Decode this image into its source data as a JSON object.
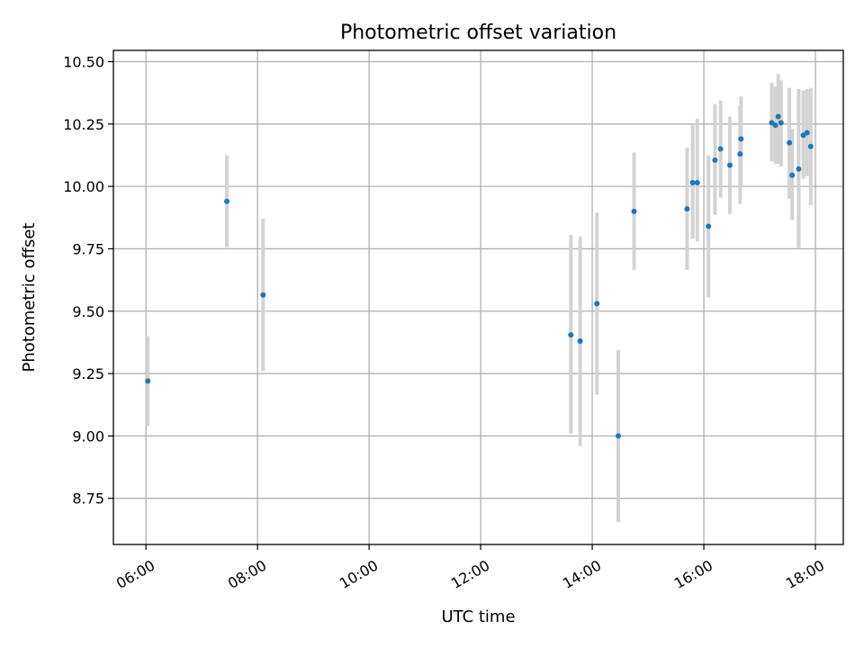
{
  "chart_data": {
    "type": "scatter",
    "title": "Photometric offset variation",
    "xlabel": "UTC time",
    "ylabel": "Photometric offset",
    "x_axis_type": "time",
    "xlim": [
      "05:25",
      "18:30"
    ],
    "ylim": [
      8.565,
      10.545
    ],
    "x_ticks": [
      "06:00",
      "08:00",
      "10:00",
      "12:00",
      "14:00",
      "16:00",
      "18:00"
    ],
    "y_ticks": [
      "8.75",
      "9.00",
      "9.25",
      "9.50",
      "9.75",
      "10.00",
      "10.25",
      "10.50"
    ],
    "grid": true,
    "legend": "none",
    "colors": {
      "point": "#1f77b4",
      "error_bar": "#d3d3d3",
      "grid": "#b0b0b0"
    },
    "points": [
      {
        "x": "06:02",
        "y": 9.22,
        "ylow": 9.04,
        "yhigh": 9.4
      },
      {
        "x": "07:27",
        "y": 9.94,
        "ylow": 9.755,
        "yhigh": 10.125
      },
      {
        "x": "08:06",
        "y": 9.565,
        "ylow": 9.26,
        "yhigh": 9.87
      },
      {
        "x": "13:37",
        "y": 9.405,
        "ylow": 9.01,
        "yhigh": 9.805
      },
      {
        "x": "13:47",
        "y": 9.38,
        "ylow": 8.96,
        "yhigh": 9.8
      },
      {
        "x": "14:05",
        "y": 9.53,
        "ylow": 9.165,
        "yhigh": 9.895
      },
      {
        "x": "14:28",
        "y": 9.0,
        "ylow": 8.655,
        "yhigh": 9.345
      },
      {
        "x": "14:45",
        "y": 9.9,
        "ylow": 9.665,
        "yhigh": 10.135
      },
      {
        "x": "15:42",
        "y": 9.91,
        "ylow": 9.665,
        "yhigh": 10.155
      },
      {
        "x": "15:48",
        "y": 10.015,
        "ylow": 9.79,
        "yhigh": 10.245
      },
      {
        "x": "15:53",
        "y": 10.015,
        "ylow": 9.78,
        "yhigh": 10.27
      },
      {
        "x": "16:05",
        "y": 9.84,
        "ylow": 9.555,
        "yhigh": 10.125
      },
      {
        "x": "16:12",
        "y": 10.105,
        "ylow": 9.885,
        "yhigh": 10.33
      },
      {
        "x": "16:18",
        "y": 10.15,
        "ylow": 9.955,
        "yhigh": 10.345
      },
      {
        "x": "16:28",
        "y": 10.085,
        "ylow": 9.89,
        "yhigh": 10.28
      },
      {
        "x": "16:39",
        "y": 10.13,
        "ylow": 9.93,
        "yhigh": 10.325
      },
      {
        "x": "16:40",
        "y": 10.19,
        "ylow": 10.0,
        "yhigh": 10.36
      },
      {
        "x": "17:13",
        "y": 10.255,
        "ylow": 10.1,
        "yhigh": 10.415
      },
      {
        "x": "17:17",
        "y": 10.245,
        "ylow": 10.09,
        "yhigh": 10.4
      },
      {
        "x": "17:20",
        "y": 10.28,
        "ylow": 10.09,
        "yhigh": 10.45
      },
      {
        "x": "17:23",
        "y": 10.255,
        "ylow": 10.08,
        "yhigh": 10.425
      },
      {
        "x": "17:32",
        "y": 10.175,
        "ylow": 9.95,
        "yhigh": 10.395
      },
      {
        "x": "17:35",
        "y": 10.045,
        "ylow": 9.865,
        "yhigh": 10.23
      },
      {
        "x": "17:42",
        "y": 10.07,
        "ylow": 9.75,
        "yhigh": 10.39
      },
      {
        "x": "17:47",
        "y": 10.205,
        "ylow": 10.03,
        "yhigh": 10.385
      },
      {
        "x": "17:51",
        "y": 10.215,
        "ylow": 10.04,
        "yhigh": 10.39
      },
      {
        "x": "17:55",
        "y": 10.16,
        "ylow": 9.925,
        "yhigh": 10.395
      }
    ]
  }
}
